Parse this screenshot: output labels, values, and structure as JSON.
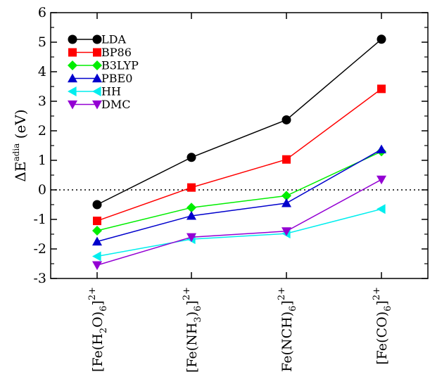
{
  "chart_data": {
    "type": "line",
    "categories": [
      "[Fe(H2O)6]2+",
      "[Fe(NH3)6]2+",
      "[Fe(NCH)6]2+",
      "[Fe(CO)6]2+"
    ],
    "category_labels": [
      {
        "pre": "[Fe(H",
        "sub1": "2",
        "mid": "O)",
        "sub2": "6",
        "post": "]",
        "sup": "2+"
      },
      {
        "pre": "[Fe(NH",
        "sub1": "3",
        "mid": ")",
        "sub2": "6",
        "post": "]",
        "sup": "2+"
      },
      {
        "pre": "[Fe(NCH)",
        "sub1": "6",
        "mid": "",
        "sub2": "",
        "post": "]",
        "sup": "2+"
      },
      {
        "pre": "[Fe(CO)",
        "sub1": "6",
        "mid": "",
        "sub2": "",
        "post": "]",
        "sup": "2+"
      }
    ],
    "ylabel": {
      "main": "ΔE",
      "sup": "adia",
      "unit": " (eV)"
    },
    "ylim": [
      -3,
      6
    ],
    "yticks": [
      -3,
      -2,
      -1,
      0,
      1,
      2,
      3,
      4,
      5,
      6
    ],
    "zero_line": "dotted",
    "legend_placement": "top-left",
    "series": [
      {
        "name": "LDA",
        "color": "#000000",
        "marker": "circle",
        "values": [
          -0.5,
          1.1,
          2.37,
          5.1
        ]
      },
      {
        "name": "BP86",
        "color": "#ff0000",
        "marker": "square",
        "values": [
          -1.05,
          0.08,
          1.03,
          3.42
        ]
      },
      {
        "name": "B3LYP",
        "color": "#00ee00",
        "marker": "diamond",
        "values": [
          -1.38,
          -0.6,
          -0.2,
          1.3
        ]
      },
      {
        "name": "PBE0",
        "color": "#0000cc",
        "marker": "triangle-up",
        "values": [
          -1.75,
          -0.88,
          -0.45,
          1.37
        ]
      },
      {
        "name": "HH",
        "color": "#00eeee",
        "marker": "triangle-left",
        "values": [
          -2.25,
          -1.67,
          -1.48,
          -0.65
        ]
      },
      {
        "name": "DMC",
        "color": "#9400d3",
        "marker": "triangle-down",
        "values": [
          -2.55,
          -1.6,
          -1.4,
          0.35
        ]
      }
    ]
  }
}
